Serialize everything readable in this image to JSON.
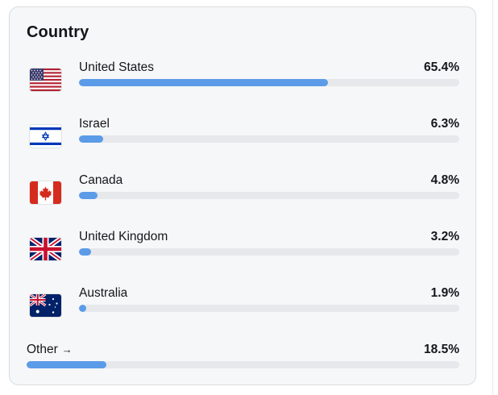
{
  "card": {
    "title": "Country"
  },
  "countries": [
    {
      "name": "United States",
      "percent_label": "65.4%",
      "percent": 65.4,
      "flag_icon": "us-flag-icon"
    },
    {
      "name": "Israel",
      "percent_label": "6.3%",
      "percent": 6.3,
      "flag_icon": "israel-flag-icon"
    },
    {
      "name": "Canada",
      "percent_label": "4.8%",
      "percent": 4.8,
      "flag_icon": "canada-flag-icon"
    },
    {
      "name": "United Kingdom",
      "percent_label": "3.2%",
      "percent": 3.2,
      "flag_icon": "uk-flag-icon"
    },
    {
      "name": "Australia",
      "percent_label": "1.9%",
      "percent": 1.9,
      "flag_icon": "australia-flag-icon"
    }
  ],
  "other": {
    "label": "Other",
    "arrow": "→",
    "percent_label": "18.5%",
    "percent": 18.5
  },
  "colors": {
    "bar_fill": "#5b9be8",
    "bar_track": "#e6e8eb",
    "card_bg": "#f6f7f8"
  }
}
